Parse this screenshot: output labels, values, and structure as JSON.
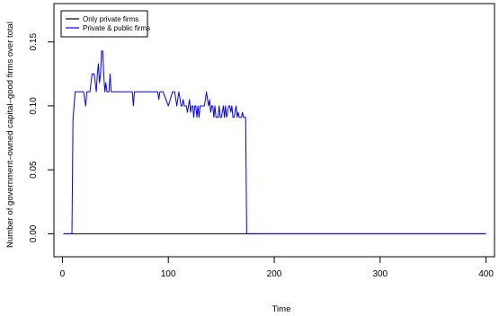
{
  "chart_data": {
    "type": "line",
    "title": "",
    "xlabel": "Time",
    "ylabel": "Number of government–owned capital–good firms over total",
    "xlim": [
      -8,
      408
    ],
    "ylim": [
      -0.018,
      0.18
    ],
    "x_ticks": [
      0,
      100,
      200,
      300,
      400
    ],
    "x_tick_labels": [
      "0",
      "100",
      "200",
      "300",
      "400"
    ],
    "y_ticks": [
      0.0,
      0.05,
      0.1,
      0.15
    ],
    "y_tick_labels": [
      "0.00",
      "0.05",
      "0.10",
      "0.15"
    ],
    "legend_position": "top-left",
    "grid": false,
    "series": [
      {
        "name": "Only private firms",
        "color": "#000000",
        "x": [
          1,
          400
        ],
        "y": [
          0.0,
          0.0
        ]
      },
      {
        "name": "Private & public firms",
        "color": "#0000ff",
        "x": [
          1,
          9,
          10,
          11,
          12,
          14,
          16,
          20,
          22,
          23,
          24,
          25,
          26,
          28,
          30,
          32,
          33,
          34,
          35,
          36,
          37,
          38,
          39,
          40,
          41,
          42,
          43,
          44,
          45,
          46,
          47,
          48,
          49,
          50,
          60,
          66,
          67,
          68,
          80,
          90,
          91,
          92,
          95,
          100,
          104,
          106,
          108,
          110,
          112,
          113,
          114,
          115,
          116,
          117,
          118,
          119,
          120,
          121,
          122,
          123,
          124,
          125,
          126,
          127,
          128,
          129,
          130,
          131,
          132,
          133,
          134,
          135,
          136,
          137,
          138,
          139,
          140,
          141,
          142,
          143,
          144,
          145,
          146,
          147,
          148,
          149,
          150,
          151,
          152,
          153,
          154,
          155,
          156,
          157,
          158,
          159,
          160,
          161,
          162,
          163,
          164,
          165,
          166,
          167,
          168,
          169,
          170,
          171,
          172,
          173,
          174,
          175,
          400
        ],
        "y": [
          0.0,
          0.0,
          0.09,
          0.1,
          0.111,
          0.111,
          0.111,
          0.111,
          0.1,
          0.111,
          0.111,
          0.111,
          0.111,
          0.125,
          0.125,
          0.111,
          0.125,
          0.133,
          0.118,
          0.125,
          0.143,
          0.143,
          0.125,
          0.111,
          0.118,
          0.111,
          0.111,
          0.111,
          0.125,
          0.111,
          0.111,
          0.111,
          0.111,
          0.111,
          0.111,
          0.111,
          0.1,
          0.111,
          0.111,
          0.111,
          0.105,
          0.111,
          0.111,
          0.1,
          0.111,
          0.111,
          0.1,
          0.111,
          0.1,
          0.1,
          0.105,
          0.1,
          0.1,
          0.1,
          0.095,
          0.1,
          0.105,
          0.095,
          0.1,
          0.1,
          0.091,
          0.1,
          0.1,
          0.091,
          0.1,
          0.091,
          0.1,
          0.1,
          0.1,
          0.1,
          0.1,
          0.105,
          0.111,
          0.105,
          0.1,
          0.105,
          0.095,
          0.1,
          0.1,
          0.091,
          0.1,
          0.091,
          0.091,
          0.091,
          0.1,
          0.091,
          0.091,
          0.095,
          0.1,
          0.091,
          0.1,
          0.091,
          0.095,
          0.1,
          0.1,
          0.095,
          0.1,
          0.091,
          0.091,
          0.095,
          0.1,
          0.091,
          0.095,
          0.091,
          0.091,
          0.091,
          0.095,
          0.091,
          0.091,
          0.091,
          0.0,
          0.0,
          0.0
        ]
      }
    ]
  }
}
